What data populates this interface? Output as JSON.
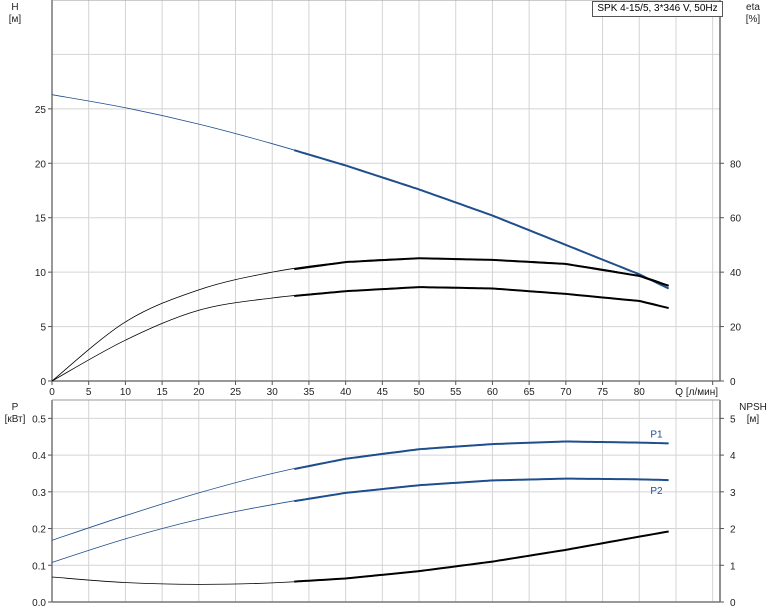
{
  "legend_box": "SPK 4-15/5, 3*346 V, 50Hz",
  "chart_data": [
    {
      "type": "line",
      "title": "",
      "xlabel": "Q [л/мин]",
      "ylabel": "H",
      "ylabel_unit": "[м]",
      "y2label": "eta",
      "y2label_unit": "[%]",
      "xlim": [
        0,
        91
      ],
      "ylim": [
        0,
        35
      ],
      "y2lim": [
        0,
        140
      ],
      "xticks": [
        0,
        5,
        10,
        15,
        20,
        25,
        30,
        35,
        40,
        45,
        50,
        55,
        60,
        65,
        70,
        75,
        80
      ],
      "yticks": [
        0,
        5,
        10,
        15,
        20,
        25
      ],
      "y2ticks": [
        0,
        20,
        40,
        60,
        80
      ],
      "grid": true,
      "x": [
        0,
        10,
        20,
        30,
        40,
        50,
        60,
        70,
        80,
        84
      ],
      "series": [
        {
          "axis": "left",
          "color": "#1f4e8c",
          "values": [
            26.3,
            25.1,
            23.6,
            21.8,
            19.8,
            17.6,
            15.2,
            12.5,
            9.8,
            8.5
          ]
        },
        {
          "axis": "right",
          "color": "#000000",
          "values": [
            0,
            21.7,
            33.5,
            40,
            43.7,
            45.1,
            44.5,
            43,
            38.6,
            35
          ]
        },
        {
          "axis": "right",
          "color": "#000000",
          "values": [
            0,
            15,
            26,
            30.5,
            33,
            34.5,
            34,
            32,
            29.4,
            26.8
          ]
        }
      ],
      "operating_range": [
        33,
        84
      ]
    },
    {
      "type": "line",
      "title": "",
      "ylabel": "P",
      "ylabel_unit": "[кВт]",
      "y2label": "NPSH",
      "y2label_unit": "[м]",
      "xlim": [
        0,
        91
      ],
      "ylim": [
        0,
        0.55
      ],
      "y2lim": [
        0,
        5.5
      ],
      "yticks": [
        "0.0",
        "0.1",
        "0.2",
        "0.3",
        "0.4",
        "0.5"
      ],
      "y2ticks": [
        "0",
        "1",
        "2",
        "3",
        "4",
        "5"
      ],
      "grid": true,
      "x": [
        0,
        10,
        20,
        30,
        40,
        50,
        60,
        70,
        80,
        84
      ],
      "series": [
        {
          "name": "P1",
          "axis": "left",
          "color": "#1f4e8c",
          "values": [
            0.168,
            0.235,
            0.297,
            0.35,
            0.39,
            0.416,
            0.43,
            0.437,
            0.434,
            0.432
          ]
        },
        {
          "name": "P2",
          "axis": "left",
          "color": "#1f4e8c",
          "values": [
            0.108,
            0.172,
            0.225,
            0.265,
            0.297,
            0.318,
            0.331,
            0.336,
            0.334,
            0.332
          ]
        },
        {
          "axis": "right",
          "color": "#000000",
          "values": [
            0.68,
            0.53,
            0.48,
            0.52,
            0.64,
            0.84,
            1.1,
            1.42,
            1.78,
            1.92
          ]
        }
      ],
      "operating_range": [
        33,
        84
      ]
    }
  ]
}
